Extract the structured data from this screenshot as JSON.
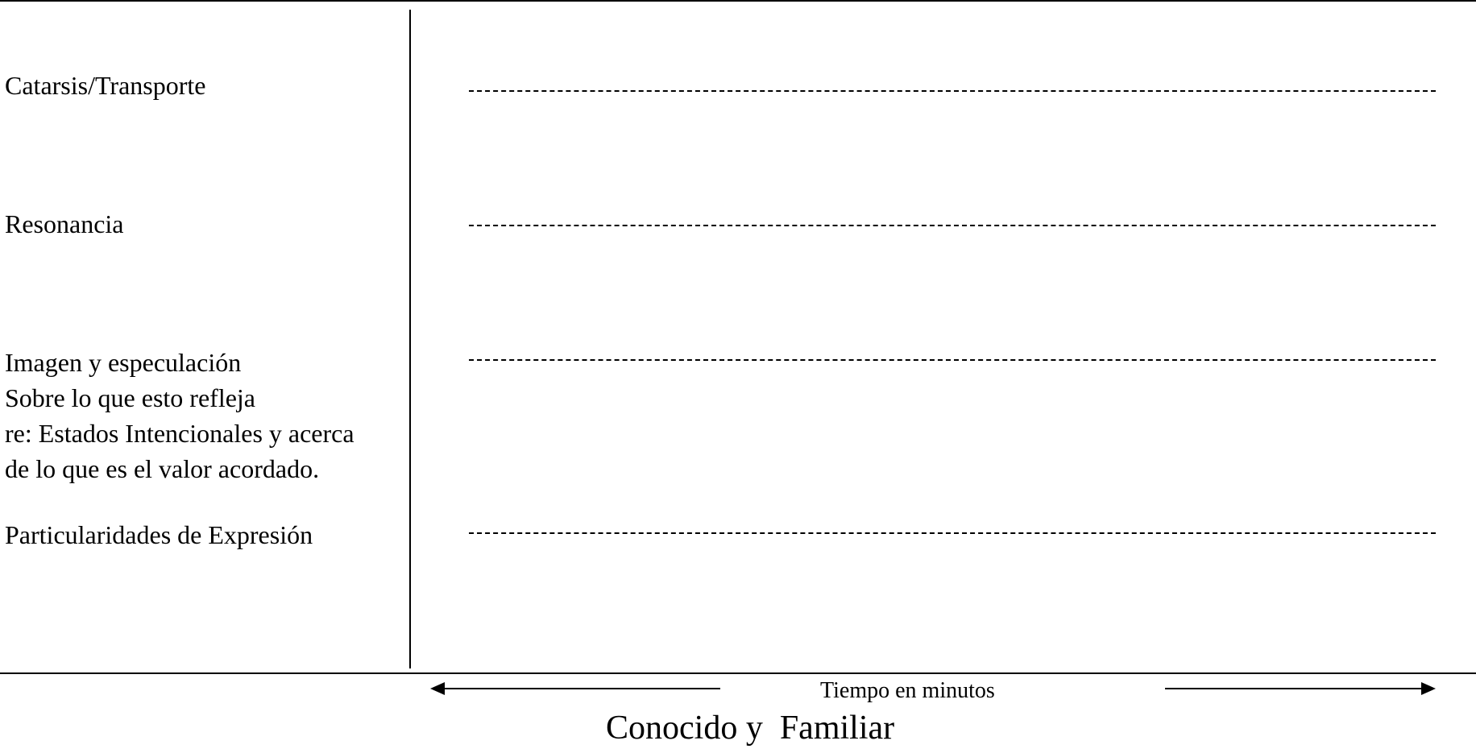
{
  "levels": [
    {
      "label": "Catarsis/Transporte"
    },
    {
      "label": "Resonancia"
    },
    {
      "lines": [
        "Imagen y especulación",
        "Sobre lo que esto refleja",
        "re: Estados Intencionales y acerca",
        "de lo que es el valor acordado."
      ]
    },
    {
      "label": "Particularidades de Expresión"
    }
  ],
  "axis": {
    "time_label": "Tiempo en minutos"
  },
  "footer": {
    "title": "Conocido y  Familiar"
  }
}
